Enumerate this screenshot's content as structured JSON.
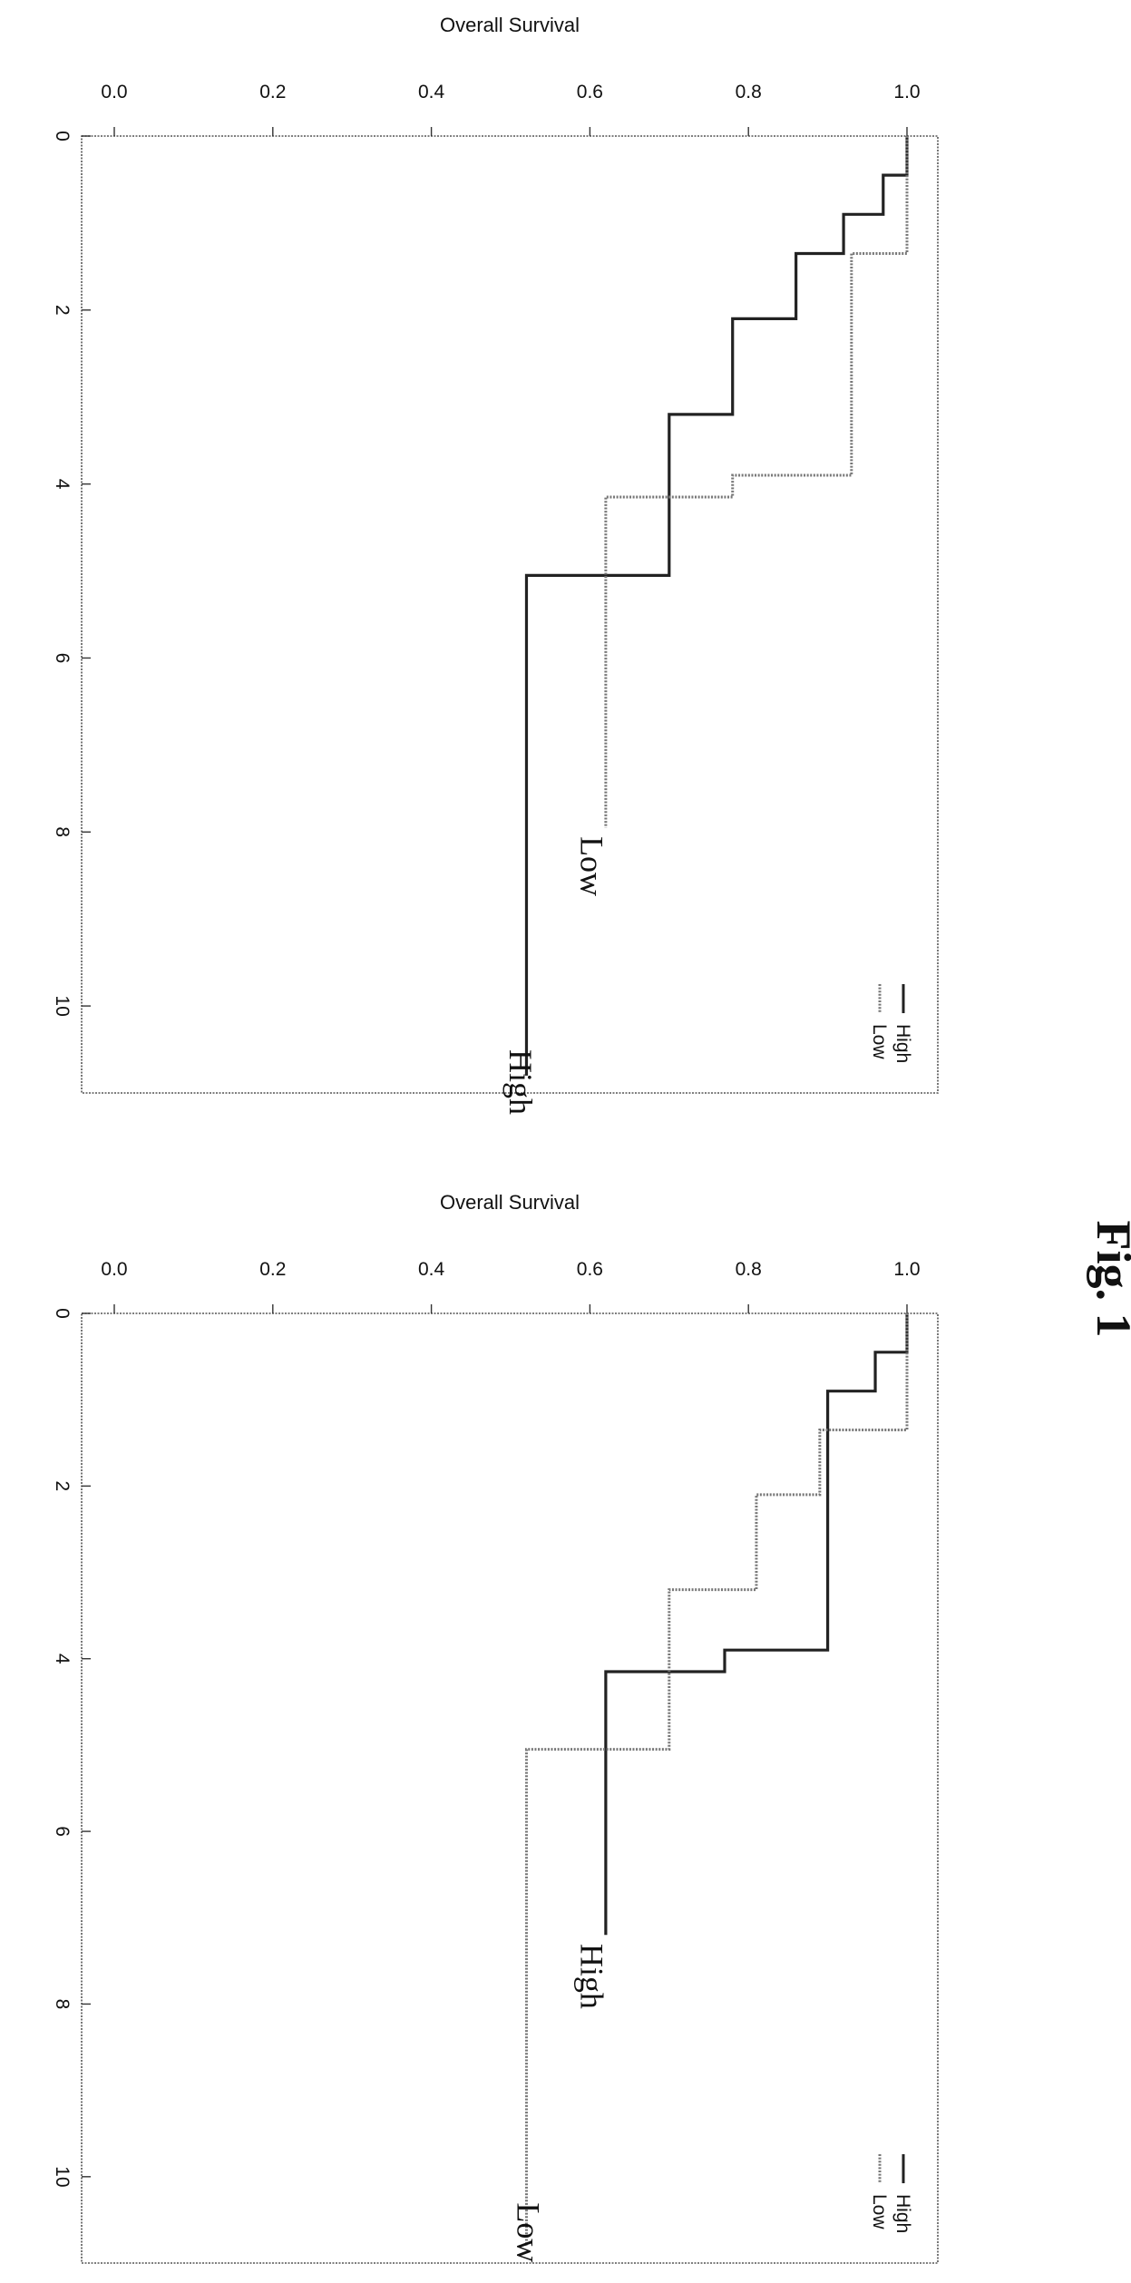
{
  "figure_label": "Fig. 1",
  "chart_data": [
    {
      "type": "line",
      "subtype": "kaplan-meier step",
      "title": "",
      "xlabel": "",
      "ylabel": "Overall Survival",
      "xlim": [
        0,
        11
      ],
      "ylim": [
        0.0,
        1.0
      ],
      "xticks": [
        "0",
        "2",
        "4",
        "6",
        "8",
        "10"
      ],
      "yticks": [
        "0.0",
        "0.2",
        "0.4",
        "0.6",
        "0.8",
        "1.0"
      ],
      "legend": {
        "position": "top-right",
        "entries": [
          "High",
          "Low"
        ]
      },
      "series": [
        {
          "name": "High",
          "style": "solid",
          "color": "#222222",
          "x": [
            0,
            0.45,
            0.9,
            1.35,
            2.1,
            3.2,
            5.05,
            10.8
          ],
          "y": [
            1.0,
            0.97,
            0.92,
            0.86,
            0.78,
            0.7,
            0.52,
            0.52
          ]
        },
        {
          "name": "Low",
          "style": "dotted",
          "color": "#777777",
          "x": [
            0,
            1.35,
            3.9,
            4.15,
            7.95
          ],
          "y": [
            1.0,
            0.93,
            0.78,
            0.62,
            0.62
          ]
        }
      ],
      "curve_labels": [
        {
          "series": "Low",
          "text": "Low",
          "x": 8.05,
          "y": 0.63
        },
        {
          "series": "High",
          "text": "High",
          "x": 10.5,
          "y": 0.54
        }
      ]
    },
    {
      "type": "line",
      "subtype": "kaplan-meier step",
      "title": "",
      "xlabel": "",
      "ylabel": "Overall Survival",
      "xlim": [
        0,
        11
      ],
      "ylim": [
        0.0,
        1.0
      ],
      "xticks": [
        "0",
        "2",
        "4",
        "6",
        "8",
        "10"
      ],
      "yticks": [
        "0.0",
        "0.2",
        "0.4",
        "0.6",
        "0.8",
        "1.0"
      ],
      "legend": {
        "position": "top-right",
        "entries": [
          "High",
          "Low"
        ]
      },
      "series": [
        {
          "name": "High",
          "style": "solid",
          "color": "#222222",
          "x": [
            0,
            0.45,
            0.9,
            3.9,
            4.15,
            7.2
          ],
          "y": [
            1.0,
            0.96,
            0.9,
            0.77,
            0.62,
            0.62
          ]
        },
        {
          "name": "Low",
          "style": "dotted",
          "color": "#777777",
          "x": [
            0,
            1.35,
            2.1,
            3.2,
            5.05,
            10.8
          ],
          "y": [
            1.0,
            0.89,
            0.81,
            0.7,
            0.52,
            0.52
          ]
        }
      ],
      "curve_labels": [
        {
          "series": "High",
          "text": "High",
          "x": 7.3,
          "y": 0.63
        },
        {
          "series": "Low",
          "text": "Low",
          "x": 10.3,
          "y": 0.55
        }
      ]
    }
  ]
}
